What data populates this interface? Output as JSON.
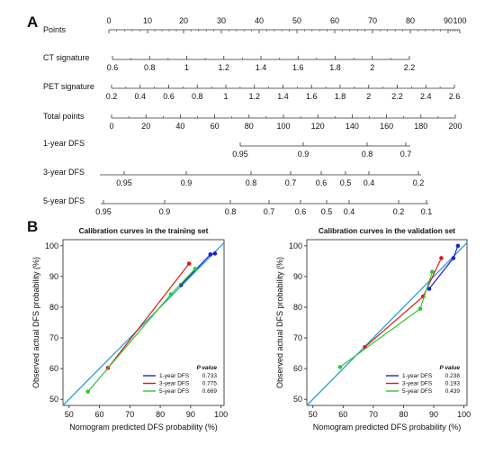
{
  "panel_a": {
    "label": "A",
    "rows": [
      {
        "name": "Points",
        "ticks": [
          {
            "value": 0,
            "label": "0"
          },
          {
            "value": 10,
            "label": "10"
          },
          {
            "value": 20,
            "label": "20"
          },
          {
            "value": 30,
            "label": "30"
          },
          {
            "value": 40,
            "label": "40"
          },
          {
            "value": 50,
            "label": "50"
          },
          {
            "value": 60,
            "label": "60"
          },
          {
            "value": 70,
            "label": "70"
          },
          {
            "value": 80,
            "label": "80"
          },
          {
            "value": 90,
            "label": "90"
          },
          {
            "value": 100,
            "label": "100"
          }
        ]
      },
      {
        "name": "CT signature",
        "ticks": [
          {
            "value": 0.6,
            "label": "0.6"
          },
          {
            "value": 0.8,
            "label": "0.8"
          },
          {
            "value": 1,
            "label": "1"
          },
          {
            "value": 1.2,
            "label": "1.2"
          },
          {
            "value": 1.4,
            "label": "1.4"
          },
          {
            "value": 1.6,
            "label": "1.6"
          },
          {
            "value": 1.8,
            "label": "1.8"
          },
          {
            "value": 2,
            "label": "2"
          },
          {
            "value": 2.2,
            "label": "2.2"
          }
        ]
      },
      {
        "name": "PET signature",
        "ticks": [
          {
            "value": 0.2,
            "label": "0.2"
          },
          {
            "value": 0.4,
            "label": "0.4"
          },
          {
            "value": 0.6,
            "label": "0.6"
          },
          {
            "value": 0.8,
            "label": "0.8"
          },
          {
            "value": 1,
            "label": "1"
          },
          {
            "value": 1.2,
            "label": "1.2"
          },
          {
            "value": 1.4,
            "label": "1.4"
          },
          {
            "value": 1.6,
            "label": "1.6"
          },
          {
            "value": 1.8,
            "label": "1.8"
          },
          {
            "value": 2,
            "label": "2"
          },
          {
            "value": 2.2,
            "label": "2.2"
          },
          {
            "value": 2.4,
            "label": "2.4"
          },
          {
            "value": 2.6,
            "label": "2.6"
          }
        ]
      },
      {
        "name": "Total points",
        "ticks": [
          {
            "value": 0,
            "label": "0"
          },
          {
            "value": 20,
            "label": "20"
          },
          {
            "value": 40,
            "label": "40"
          },
          {
            "value": 60,
            "label": "60"
          },
          {
            "value": 80,
            "label": "80"
          },
          {
            "value": 100,
            "label": "100"
          },
          {
            "value": 120,
            "label": "120"
          },
          {
            "value": 140,
            "label": "140"
          },
          {
            "value": 160,
            "label": "160"
          },
          {
            "value": 180,
            "label": "180"
          },
          {
            "value": 200,
            "label": "200"
          }
        ]
      },
      {
        "name": "1-year DFS",
        "ticks": [
          {
            "value": 0.95,
            "label": "0.95"
          },
          {
            "value": 0.9,
            "label": "0.9"
          },
          {
            "value": 0.8,
            "label": "0.8"
          },
          {
            "value": 0.7,
            "label": "0.7"
          }
        ]
      },
      {
        "name": "3-year DFS",
        "ticks": [
          {
            "value": 0.95,
            "label": "0.95"
          },
          {
            "value": 0.9,
            "label": "0.9"
          },
          {
            "value": 0.8,
            "label": "0.8"
          },
          {
            "value": 0.7,
            "label": "0.7"
          },
          {
            "value": 0.6,
            "label": "0.6"
          },
          {
            "value": 0.5,
            "label": "0.5"
          },
          {
            "value": 0.4,
            "label": "0.4"
          },
          {
            "value": 0.2,
            "label": "0.2"
          }
        ]
      },
      {
        "name": "5-year DFS",
        "ticks": [
          {
            "value": 0.95,
            "label": "0.95"
          },
          {
            "value": 0.9,
            "label": "0.9"
          },
          {
            "value": 0.8,
            "label": "0.8"
          },
          {
            "value": 0.7,
            "label": "0.7"
          },
          {
            "value": 0.6,
            "label": "0.6"
          },
          {
            "value": 0.5,
            "label": "0.5"
          },
          {
            "value": 0.4,
            "label": "0.4"
          },
          {
            "value": 0.2,
            "label": "0.2"
          },
          {
            "value": 0.1,
            "label": "0.1"
          }
        ]
      }
    ]
  },
  "panel_b": {
    "label": "B",
    "pvalue_header": "P value",
    "colors": {
      "1-year DFS": "#1f1fd6",
      "3-year DFS": "#e01a1a",
      "5-year DFS": "#2ec82e",
      "reference": "#2aa0d8"
    }
  },
  "chart_data": [
    {
      "type": "line",
      "title": "Calibration curves in the training set",
      "xlabel": "Nomogram predicted DFS probability (%)",
      "ylabel": "Observed actual DFS probability (%)",
      "xlim": [
        48,
        101
      ],
      "ylim": [
        48,
        102
      ],
      "xticks": [
        50,
        60,
        70,
        80,
        90,
        100
      ],
      "yticks": [
        50,
        60,
        70,
        80,
        90,
        100
      ],
      "reference_line": "diagonal",
      "series": [
        {
          "name": "1-year DFS",
          "pvalue": "0.733",
          "x": [
            86.8,
            96.5,
            98
          ],
          "y": [
            87.2,
            97.2,
            97.5
          ]
        },
        {
          "name": "3-year DFS",
          "pvalue": "0.775",
          "x": [
            62.8,
            89.5
          ],
          "y": [
            60.2,
            94.2
          ]
        },
        {
          "name": "5-year DFS",
          "pvalue": "0.669",
          "x": [
            56.2,
            83.5,
            91.5
          ],
          "y": [
            52.5,
            84.2,
            92.5
          ]
        }
      ]
    },
    {
      "type": "line",
      "title": "Calibration curves in the validation set",
      "xlabel": "Nomogram predicted DFS probability (%)",
      "ylabel": "Observed actual DFS probability (%)",
      "xlim": [
        48,
        101
      ],
      "ylim": [
        48,
        102
      ],
      "xticks": [
        50,
        60,
        70,
        80,
        90,
        100
      ],
      "yticks": [
        50,
        60,
        70,
        80,
        90,
        100
      ],
      "reference_line": "diagonal",
      "series": [
        {
          "name": "1-year DFS",
          "pvalue": "0.238",
          "x": [
            88.5,
            96.5,
            98
          ],
          "y": [
            86,
            96,
            100
          ]
        },
        {
          "name": "3-year DFS",
          "pvalue": "0.193",
          "x": [
            67.2,
            86.5,
            92.5
          ],
          "y": [
            67,
            83.5,
            96
          ]
        },
        {
          "name": "5-year DFS",
          "pvalue": "0.439",
          "x": [
            59,
            85.5,
            89.5
          ],
          "y": [
            60.5,
            79.5,
            91.5
          ]
        }
      ]
    }
  ]
}
